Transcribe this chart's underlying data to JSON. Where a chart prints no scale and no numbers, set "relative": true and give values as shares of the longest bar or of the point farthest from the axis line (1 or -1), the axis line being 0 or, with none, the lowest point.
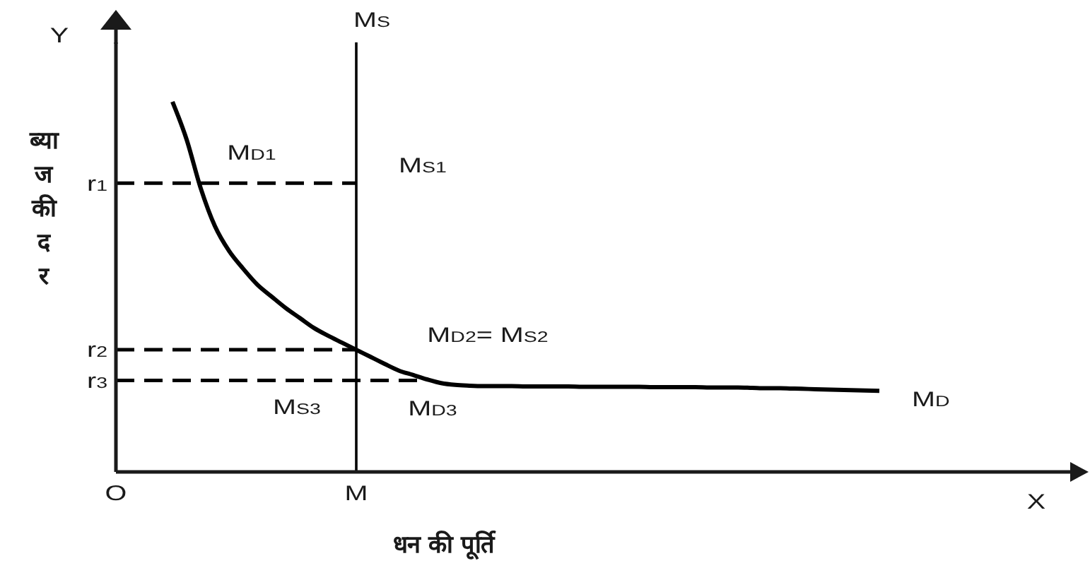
{
  "chart_data": {
    "type": "line",
    "relative": true,
    "xlabel": "धन की पूर्ति",
    "ylabel": "ब्याज की दर",
    "marker": "none",
    "categories": [
      "O",
      null,
      null,
      null,
      null,
      null,
      null,
      null,
      null,
      null,
      null,
      null,
      null,
      null,
      null,
      null,
      null,
      "M",
      null,
      null,
      null,
      null,
      null,
      null,
      null,
      null,
      null,
      null,
      null,
      null,
      null,
      null,
      null,
      null,
      null,
      null,
      null,
      null,
      null,
      null,
      null,
      null,
      null,
      null,
      null,
      null,
      null,
      null,
      null,
      null,
      null,
      null,
      null,
      null,
      null,
      null,
      null,
      null,
      null,
      null,
      null,
      null,
      null,
      null,
      null,
      null,
      null,
      null,
      null
    ],
    "series": [
      {
        "name": "M$_{D}$",
        "color": "#000000",
        "values": [
          null,
          null,
          null,
          null,
          1,
          0.898,
          0.766,
          0.664,
          0.597,
          0.549,
          0.506,
          0.474,
          0.443,
          0.416,
          0.389,
          0.368,
          0.349,
          0.33,
          0.311,
          0.292,
          0.274,
          0.262,
          0.25,
          0.24,
          0.235,
          0.233,
          0.232,
          0.232,
          0.232,
          0.231,
          0.231,
          0.231,
          0.231,
          0.23,
          0.23,
          0.23,
          0.23,
          0.23,
          0.229,
          0.229,
          0.229,
          0.229,
          0.228,
          0.228,
          0.228,
          0.227,
          0.226,
          0.226,
          0.225,
          0.224,
          0.223,
          0.222,
          0.221,
          0.22,
          0.219,
          null,
          null,
          null,
          null,
          null,
          null,
          null,
          null,
          null,
          null,
          null,
          null,
          null,
          null
        ]
      }
    ],
    "ref_lines": [
      {
        "axis": "x",
        "value": "M",
        "label": "M$_{S}$",
        "color": "#000000"
      },
      {
        "axis": "y",
        "value": 0.78,
        "label": "r$_{1}$",
        "color": "#000000",
        "line_style": "dashed"
      },
      {
        "axis": "y",
        "value": 0.33,
        "label": "r$_{2}$",
        "color": "#000000",
        "line_style": "dashed"
      },
      {
        "axis": "y",
        "value": 0.247,
        "label": "r$_{3}$",
        "color": "#000000",
        "line_style": "dashed"
      }
    ],
    "annotations": [
      "Y",
      "X",
      "M$_{D1}$",
      "M$_{S1}$",
      "M$_{D2}$= M$_{S2}$",
      "M$_{S3}$",
      "M$_{D3}$"
    ]
  }
}
